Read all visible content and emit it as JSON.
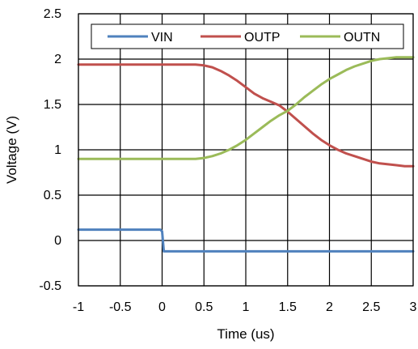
{
  "chart_data": {
    "type": "line",
    "title": "",
    "xlabel": "Time (us)",
    "ylabel": "Voltage (V)",
    "xlim": [
      -1,
      3
    ],
    "ylim": [
      -0.5,
      2.5
    ],
    "xticks": [
      -1,
      -0.5,
      0,
      0.5,
      1,
      1.5,
      2,
      2.5,
      3
    ],
    "yticks": [
      -0.5,
      0,
      0.5,
      1,
      1.5,
      2,
      2.5
    ],
    "xtick_labels": [
      "-1",
      "-0.5",
      "0",
      "0.5",
      "1",
      "1.5",
      "2",
      "2.5",
      "3"
    ],
    "ytick_labels": [
      "-0.5",
      "0",
      "0.5",
      "1",
      "1.5",
      "2",
      "2.5"
    ],
    "grid": true,
    "legend_position": "top",
    "series": [
      {
        "name": "VIN",
        "color": "#4F81BD",
        "points": [
          [
            -1,
            0.12
          ],
          [
            -0.02,
            0.12
          ],
          [
            0,
            0.1
          ],
          [
            0.02,
            -0.12
          ],
          [
            3,
            -0.12
          ]
        ]
      },
      {
        "name": "OUTP",
        "color": "#C0504D",
        "points": [
          [
            -1,
            1.94
          ],
          [
            0.4,
            1.94
          ],
          [
            0.5,
            1.93
          ],
          [
            0.6,
            1.91
          ],
          [
            0.7,
            1.87
          ],
          [
            0.8,
            1.82
          ],
          [
            0.9,
            1.76
          ],
          [
            1.0,
            1.69
          ],
          [
            1.1,
            1.62
          ],
          [
            1.2,
            1.57
          ],
          [
            1.3,
            1.53
          ],
          [
            1.4,
            1.49
          ],
          [
            1.5,
            1.42
          ],
          [
            1.6,
            1.34
          ],
          [
            1.7,
            1.26
          ],
          [
            1.8,
            1.18
          ],
          [
            1.9,
            1.11
          ],
          [
            2.0,
            1.05
          ],
          [
            2.1,
            1.0
          ],
          [
            2.2,
            0.96
          ],
          [
            2.3,
            0.93
          ],
          [
            2.4,
            0.9
          ],
          [
            2.5,
            0.87
          ],
          [
            2.6,
            0.85
          ],
          [
            2.7,
            0.84
          ],
          [
            2.8,
            0.83
          ],
          [
            2.9,
            0.82
          ],
          [
            3.0,
            0.82
          ]
        ]
      },
      {
        "name": "OUTN",
        "color": "#9BBB59",
        "points": [
          [
            -1,
            0.9
          ],
          [
            0.4,
            0.9
          ],
          [
            0.5,
            0.91
          ],
          [
            0.6,
            0.93
          ],
          [
            0.7,
            0.96
          ],
          [
            0.8,
            1.0
          ],
          [
            0.9,
            1.05
          ],
          [
            1.0,
            1.11
          ],
          [
            1.1,
            1.18
          ],
          [
            1.2,
            1.25
          ],
          [
            1.3,
            1.32
          ],
          [
            1.4,
            1.38
          ],
          [
            1.5,
            1.43
          ],
          [
            1.6,
            1.5
          ],
          [
            1.7,
            1.58
          ],
          [
            1.8,
            1.65
          ],
          [
            1.9,
            1.72
          ],
          [
            2.0,
            1.78
          ],
          [
            2.1,
            1.83
          ],
          [
            2.2,
            1.88
          ],
          [
            2.3,
            1.92
          ],
          [
            2.4,
            1.95
          ],
          [
            2.5,
            1.98
          ],
          [
            2.6,
            2.0
          ],
          [
            2.7,
            2.01
          ],
          [
            2.8,
            2.02
          ],
          [
            2.9,
            2.02
          ],
          [
            3.0,
            2.02
          ]
        ]
      }
    ]
  }
}
